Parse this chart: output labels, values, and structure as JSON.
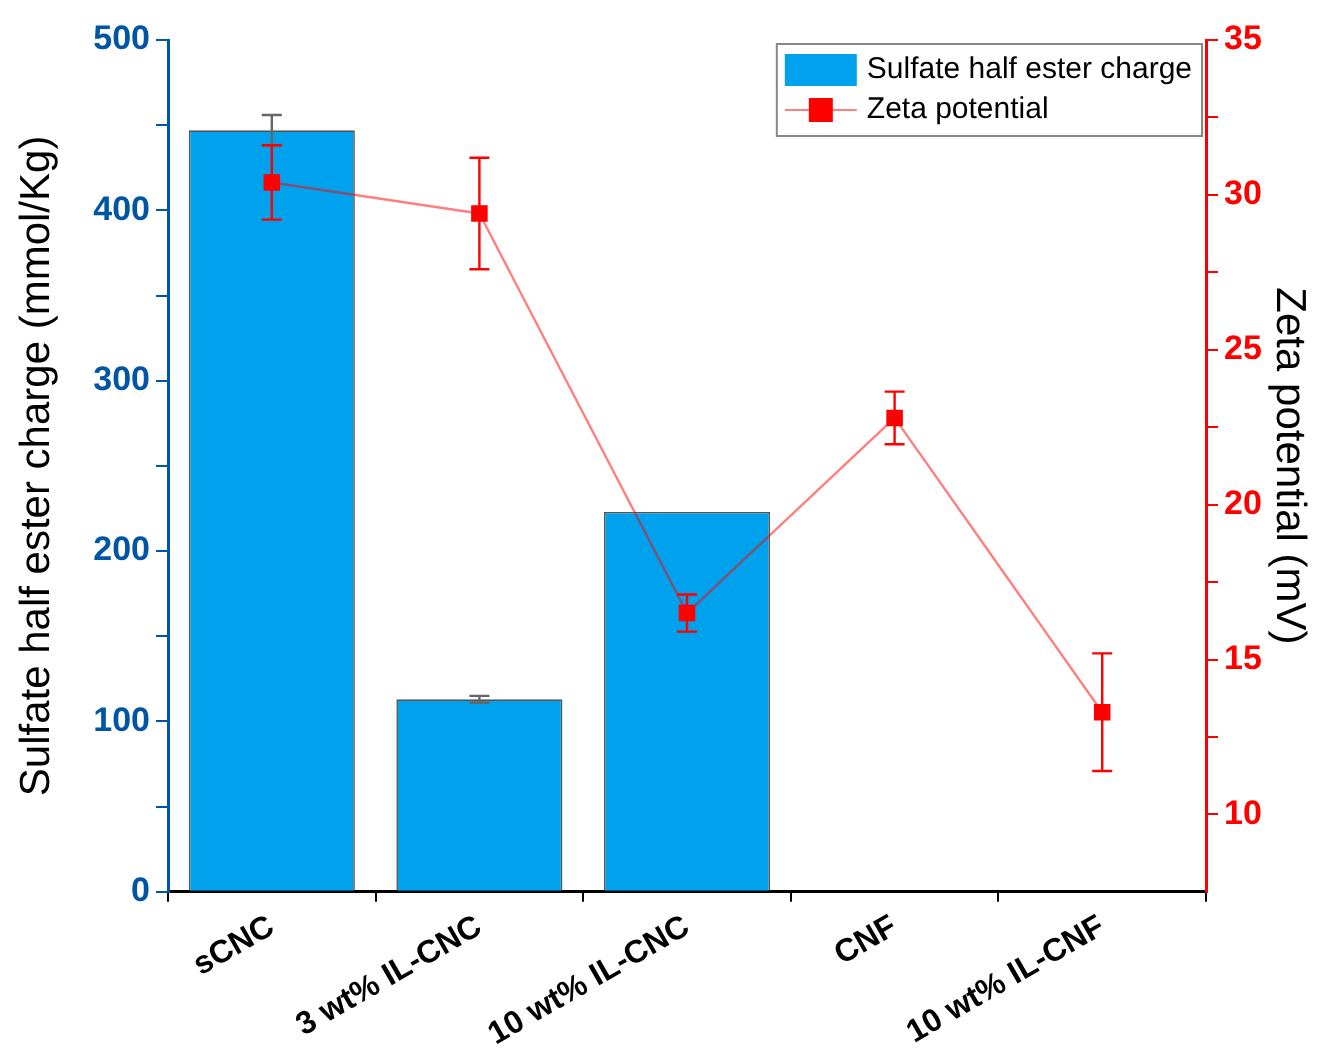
{
  "chart_data": {
    "type": "bar",
    "categories": [
      "sCNC",
      "3 wt% IL-CNC",
      "10 wt% IL-CNC",
      "CNF",
      "10 wt% IL-CNF"
    ],
    "ylabel": "Sulfate half ester charge (mmol/Kg)",
    "y2label": "Zeta potential (mV)",
    "ylim": [
      0,
      500
    ],
    "yticks": [
      0,
      {
        "value": 50,
        "label": null
      },
      100,
      {
        "value": 150,
        "label": null
      },
      200,
      {
        "value": 250,
        "label": null
      },
      300,
      {
        "value": 350,
        "label": null
      },
      400,
      {
        "value": 450,
        "label": null
      },
      500
    ],
    "y2lim": [
      7.5,
      35
    ],
    "y2ticks": [
      10,
      {
        "value": 12.5,
        "label": null
      },
      15,
      {
        "value": 17.5,
        "label": null
      },
      20,
      {
        "value": 22.5,
        "label": null
      },
      25,
      {
        "value": 27.5,
        "label": null
      },
      30,
      {
        "value": 32.5,
        "label": null
      },
      35
    ],
    "legend": "top right",
    "grid": false,
    "series": [
      {
        "name": "Sulfate half ester charge",
        "color": "#00a2ed",
        "values": [
          447,
          113,
          223,
          null,
          null
        ],
        "errors": [
          9,
          2,
          null,
          null,
          null
        ]
      },
      {
        "name": "Zeta potential",
        "type": "line",
        "axis": "y2",
        "color": "#ff0000",
        "marker": "square",
        "values": [
          30.4,
          29.4,
          16.5,
          22.8,
          13.3
        ],
        "errors": [
          1.2,
          1.8,
          0.6,
          0.85,
          1.9
        ]
      }
    ]
  }
}
